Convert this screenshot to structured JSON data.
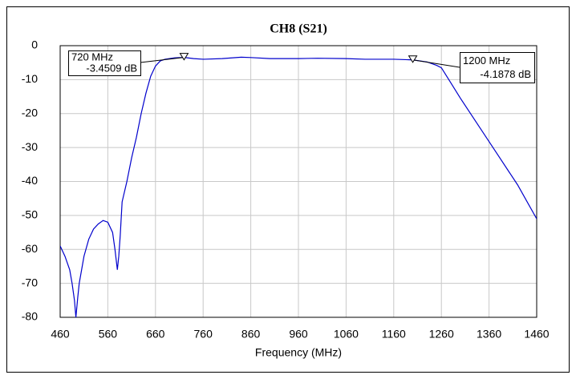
{
  "chart_data": {
    "type": "line",
    "title": "CH8 (S21)",
    "x_label": "Frequency (MHz)",
    "x": [
      460,
      470,
      480,
      485,
      490,
      493,
      497,
      500,
      510,
      520,
      530,
      540,
      550,
      560,
      570,
      575,
      580,
      583,
      586,
      590,
      600,
      610,
      620,
      630,
      640,
      650,
      660,
      670,
      680,
      700,
      720,
      740,
      760,
      800,
      840,
      860,
      900,
      960,
      1000,
      1060,
      1100,
      1160,
      1200,
      1230,
      1250,
      1260,
      1280,
      1300,
      1340,
      1380,
      1420,
      1460
    ],
    "series": [
      {
        "name": "S21",
        "color": "#0000cc",
        "values": [
          -59,
          -62,
          -66,
          -70,
          -75,
          -80,
          -74,
          -70,
          -62,
          -57,
          -54,
          -52.5,
          -51.5,
          -52,
          -55,
          -60,
          -66,
          -62,
          -56,
          -46,
          -40,
          -33,
          -27,
          -20,
          -14,
          -9,
          -6,
          -4.5,
          -4,
          -3.6,
          -3.4509,
          -3.8,
          -4,
          -3.8,
          -3.4,
          -3.5,
          -3.8,
          -3.8,
          -3.7,
          -3.8,
          -4,
          -4,
          -4.1878,
          -4.8,
          -5.8,
          -6.5,
          -11,
          -15.5,
          -24,
          -32.5,
          -41,
          -51
        ]
      }
    ],
    "xlim": [
      460,
      1460
    ],
    "xticks": [
      460,
      560,
      660,
      760,
      860,
      960,
      1060,
      1160,
      1260,
      1360,
      1460
    ],
    "ylim": [
      -80,
      0
    ],
    "yticks": [
      0,
      -10,
      -20,
      -30,
      -40,
      -50,
      -60,
      -70,
      -80
    ],
    "grid": true,
    "annotations": [
      {
        "x": 720,
        "y": -3.4509,
        "freq_text": "720 MHz",
        "level_text": "-3.4509 dB"
      },
      {
        "x": 1200,
        "y": -4.1878,
        "freq_text": "1200 MHz",
        "level_text": "-4.1878 dB"
      }
    ]
  }
}
